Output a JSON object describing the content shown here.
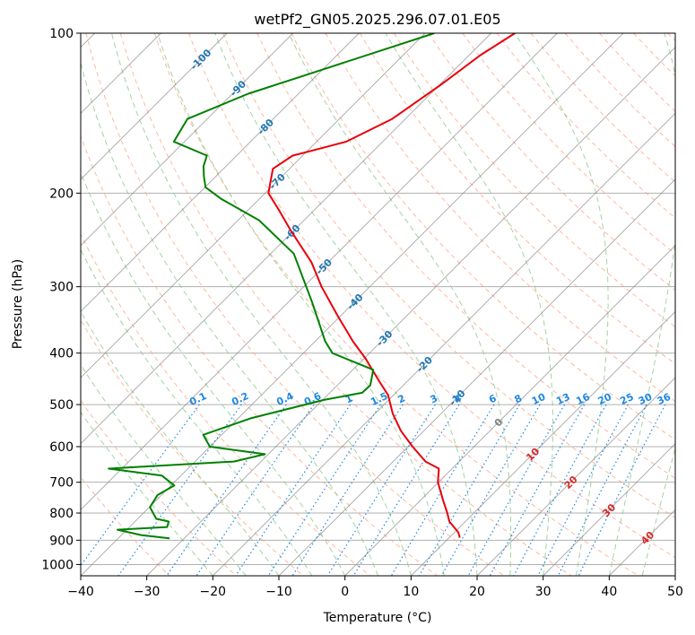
{
  "chart_data": {
    "type": "line",
    "subtype": "skew-t log-p diagram",
    "title": "wetPf2_GN05.2025.296.07.01.E05",
    "xlabel": "Temperature (°C)",
    "ylabel": "Pressure (hPa)",
    "xlim": [
      -40,
      50
    ],
    "ylim": [
      1050,
      100
    ],
    "y_scale": "log",
    "skew_degrees": 45,
    "x_ticks": [
      -40,
      -30,
      -20,
      -10,
      0,
      10,
      20,
      30,
      40,
      50
    ],
    "x_tick_labels": [
      "−40",
      "−30",
      "−20",
      "−10",
      "0",
      "10",
      "20",
      "30",
      "40",
      "50"
    ],
    "y_ticks": [
      100,
      200,
      300,
      400,
      500,
      600,
      700,
      800,
      900,
      1000
    ],
    "y_tick_labels": [
      "100",
      "200",
      "300",
      "400",
      "500",
      "600",
      "700",
      "800",
      "900",
      "1000"
    ],
    "grid": true,
    "series": [
      {
        "name": "Temperature",
        "color": "#e8000b",
        "points": [
          {
            "p": 100,
            "t": -56.4
          },
          {
            "p": 110,
            "t": -58.3
          },
          {
            "p": 125,
            "t": -59.8
          },
          {
            "p": 145,
            "t": -62.0
          },
          {
            "p": 160,
            "t": -65.5
          },
          {
            "p": 165,
            "t": -68.5
          },
          {
            "p": 170,
            "t": -71.5
          },
          {
            "p": 180,
            "t": -72.5
          },
          {
            "p": 200,
            "t": -69.5
          },
          {
            "p": 215,
            "t": -65.4
          },
          {
            "p": 235,
            "t": -60.5
          },
          {
            "p": 270,
            "t": -52.5
          },
          {
            "p": 300,
            "t": -47.3
          },
          {
            "p": 340,
            "t": -40.5
          },
          {
            "p": 380,
            "t": -34.3
          },
          {
            "p": 410,
            "t": -29.7
          },
          {
            "p": 450,
            "t": -24.5
          },
          {
            "p": 480,
            "t": -20.8
          },
          {
            "p": 520,
            "t": -17.3
          },
          {
            "p": 560,
            "t": -13.5
          },
          {
            "p": 600,
            "t": -9.3
          },
          {
            "p": 640,
            "t": -5.1
          },
          {
            "p": 660,
            "t": -2.0
          },
          {
            "p": 700,
            "t": -0.1
          },
          {
            "p": 760,
            "t": 3.6
          },
          {
            "p": 800,
            "t": 6.0
          },
          {
            "p": 830,
            "t": 7.6
          },
          {
            "p": 870,
            "t": 10.6
          },
          {
            "p": 890,
            "t": 11.6
          }
        ]
      },
      {
        "name": "Dewpoint",
        "color": "#008000",
        "points": [
          {
            "p": 100,
            "t": -68.6
          },
          {
            "p": 120,
            "t": -81.8
          },
          {
            "p": 130,
            "t": -87.6
          },
          {
            "p": 145,
            "t": -93.0
          },
          {
            "p": 160,
            "t": -91.6
          },
          {
            "p": 170,
            "t": -84.5
          },
          {
            "p": 178,
            "t": -83.4
          },
          {
            "p": 186,
            "t": -81.8
          },
          {
            "p": 195,
            "t": -79.9
          },
          {
            "p": 205,
            "t": -75.8
          },
          {
            "p": 225,
            "t": -66.8
          },
          {
            "p": 260,
            "t": -56.5
          },
          {
            "p": 320,
            "t": -46.5
          },
          {
            "p": 380,
            "t": -38.5
          },
          {
            "p": 400,
            "t": -35.6
          },
          {
            "p": 430,
            "t": -26.9
          },
          {
            "p": 460,
            "t": -25.0
          },
          {
            "p": 475,
            "t": -25.1
          },
          {
            "p": 490,
            "t": -29.8
          },
          {
            "p": 530,
            "t": -38.0
          },
          {
            "p": 570,
            "t": -42.8
          },
          {
            "p": 600,
            "t": -40.0
          },
          {
            "p": 620,
            "t": -30.5
          },
          {
            "p": 640,
            "t": -34.1
          },
          {
            "p": 660,
            "t": -52.0
          },
          {
            "p": 680,
            "t": -42.9
          },
          {
            "p": 710,
            "t": -39.5
          },
          {
            "p": 740,
            "t": -40.6
          },
          {
            "p": 780,
            "t": -39.9
          },
          {
            "p": 820,
            "t": -37.2
          },
          {
            "p": 830,
            "t": -34.9
          },
          {
            "p": 850,
            "t": -34.3
          },
          {
            "p": 860,
            "t": -41.4
          },
          {
            "p": 880,
            "t": -37.0
          },
          {
            "p": 893,
            "t": -32.2
          }
        ]
      }
    ],
    "isotherm_labels": [
      "-100",
      "-90",
      "-80",
      "-70",
      "-60",
      "-50",
      "-40",
      "-30",
      "-20",
      "-10",
      "0",
      "10",
      "20",
      "30",
      "40"
    ],
    "mixing_ratio_labels": [
      "0.1",
      "0.2",
      "0.4",
      "0.6",
      "1",
      "1.5",
      "2",
      "3",
      "4",
      "6",
      "8",
      "10",
      "13",
      "16",
      "20",
      "25",
      "30",
      "36"
    ],
    "colors": {
      "temperature": "#e8000b",
      "dewpoint": "#008000",
      "isotherm": "#808080",
      "grid": "#b0b0b0",
      "dry_adiabat": "#ffa080",
      "moist_adiabat": "#8cc88c",
      "mixing_ratio": "#1e88e5",
      "isotherm_label_cold": "#1f77b4",
      "isotherm_label_zero": "#808080",
      "isotherm_label_warm": "#d62728",
      "mixing_ratio_label": "#1e88e5"
    }
  }
}
